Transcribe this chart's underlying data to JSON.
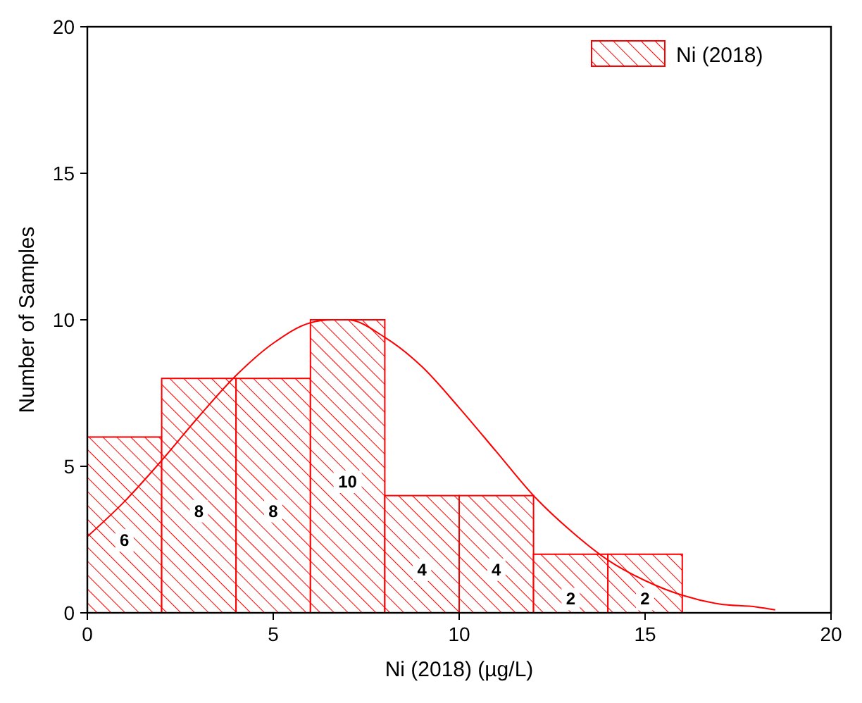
{
  "chart_data": {
    "type": "histogram",
    "xlabel": "Ni (2018) (µg/L)",
    "ylabel": "Number of Samples",
    "bins": [
      0,
      2,
      4,
      6,
      8,
      10,
      12,
      14,
      16
    ],
    "series": [
      {
        "name": "Ni (2018)",
        "color": "#ff0000",
        "values": [
          6,
          8,
          8,
          10,
          4,
          4,
          2,
          2
        ],
        "value_labels": [
          "6",
          "8",
          "8",
          "10",
          "4",
          "4",
          "2",
          "2"
        ]
      },
      {
        "type": "line",
        "color": "#ff0000",
        "x": [
          0,
          1,
          2,
          3,
          4,
          5,
          6,
          6.6,
          7,
          8,
          9,
          10,
          11,
          12,
          13,
          14,
          15,
          16,
          17,
          18,
          18.5
        ],
        "values": [
          2.6,
          3.8,
          5.2,
          6.7,
          8.1,
          9.2,
          9.9,
          10,
          10,
          9.4,
          8.4,
          7.0,
          5.5,
          4.0,
          2.8,
          1.8,
          1.1,
          0.6,
          0.3,
          0.2,
          0.1
        ]
      }
    ],
    "xlim": [
      0,
      20
    ],
    "ylim": [
      0,
      20
    ],
    "xticks": [
      0,
      5,
      10,
      15,
      20
    ],
    "yticks": [
      0,
      5,
      10,
      15,
      20
    ],
    "grid": false,
    "legend": "top right",
    "marker": "none",
    "line_style": "solid"
  }
}
